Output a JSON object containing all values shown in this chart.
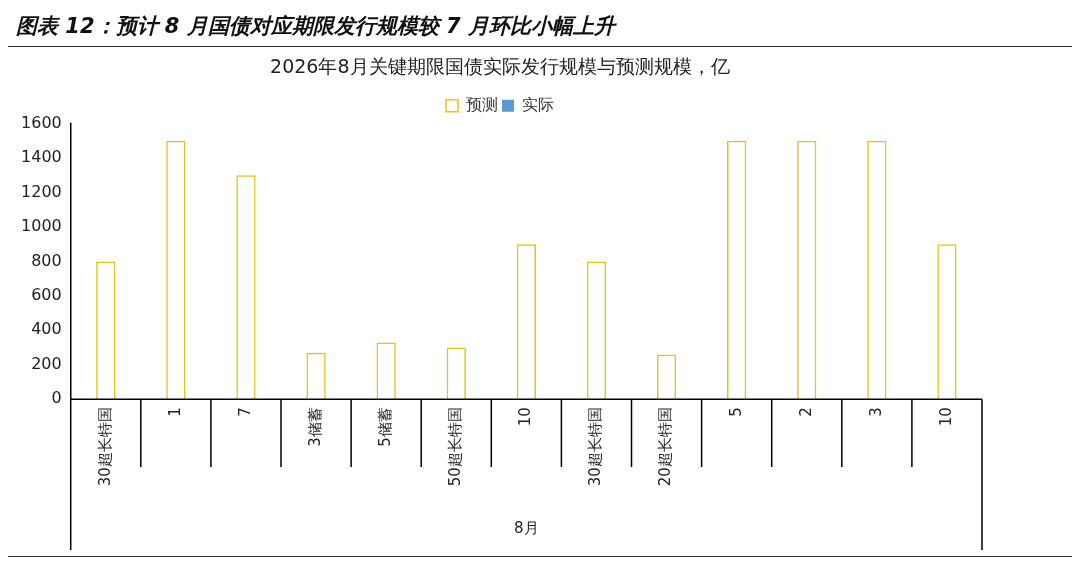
{
  "chart_data": {
    "type": "bar",
    "title": "图表 12：预计 8 月国债对应期限发行规模较 7 月环比小幅上升",
    "subtitle": "2026年8月关键期限国债实际发行规模与预测规模，亿",
    "xlabel": "8月",
    "categories": [
      "30超长特国",
      "1",
      "7",
      "3储蓄",
      "5储蓄",
      "50超长特国",
      "10",
      "30超长特国",
      "20超长特国",
      "5",
      "2",
      "3",
      "10"
    ],
    "series": [
      {
        "name": "预测",
        "color": "#e8c31a",
        "values": [
          800,
          1500,
          1300,
          270,
          330,
          300,
          900,
          800,
          260,
          1500,
          1500,
          1500,
          900
        ]
      },
      {
        "name": "实际",
        "color": "#5b9bd5",
        "values": [
          null,
          null,
          null,
          null,
          null,
          null,
          null,
          null,
          null,
          null,
          null,
          null,
          null
        ]
      }
    ],
    "ylim": [
      0,
      1600
    ],
    "yticks": [
      0,
      200,
      400,
      600,
      800,
      1000,
      1200,
      1400,
      1600
    ],
    "grid": false,
    "legend": "top"
  }
}
